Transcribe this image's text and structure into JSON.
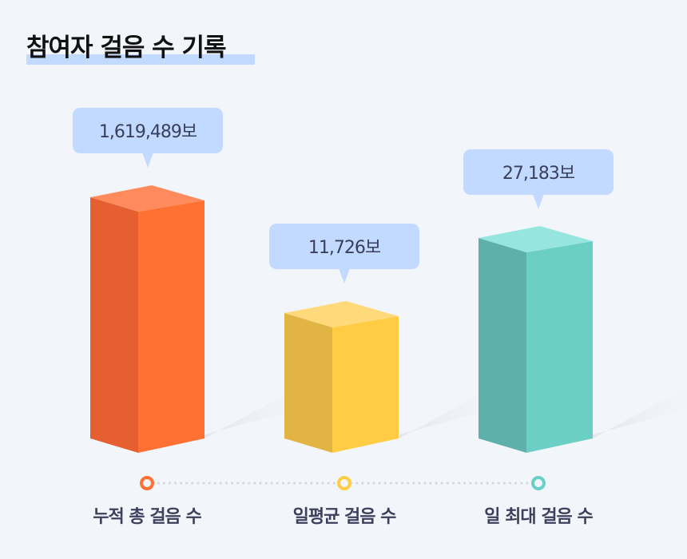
{
  "chart_data": {
    "type": "bar",
    "title": "참여자 걸음 수 기록",
    "categories": [
      "누적 총 걸음 수",
      "일평균 걸음 수",
      "일 최대 걸음 수"
    ],
    "values": [
      1619489,
      11726,
      27183
    ],
    "unit": "보",
    "data_labels": [
      "1,619,489보",
      "11,726보",
      "27,183보"
    ],
    "colors": [
      "#FF7033",
      "#FFCC44",
      "#6BCFC6"
    ],
    "xlabel": "",
    "ylabel": "",
    "grid": false,
    "legend": "none"
  }
}
